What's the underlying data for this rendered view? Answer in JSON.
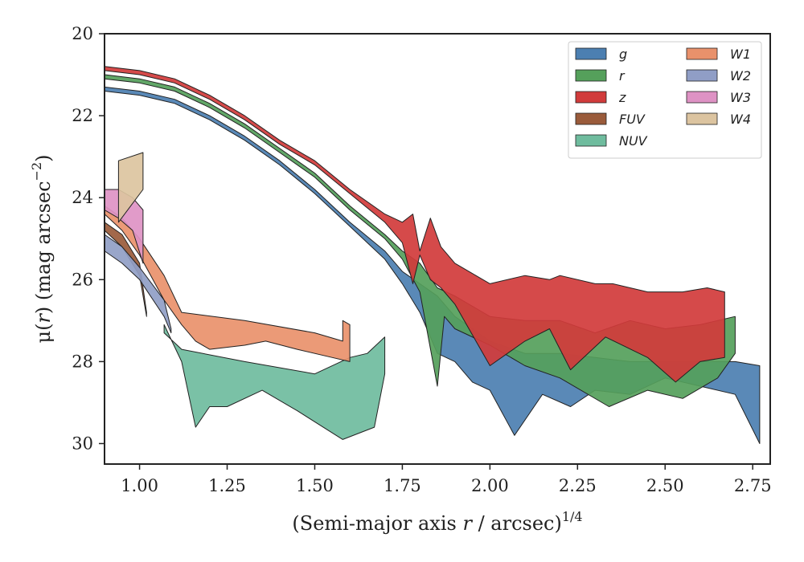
{
  "chart_data": {
    "type": "area",
    "xlabel": "(Semi-major axis r / arcsec)^1/4",
    "xlabel_parts": {
      "pre": "(Semi-major axis ",
      "var": "r",
      "post": " / arcsec)",
      "sup": "1/4"
    },
    "ylabel": "μ(r) (mag arcsec^−2)",
    "ylabel_parts": {
      "pre": "μ(",
      "var": "r",
      "mid": ") (mag arcsec",
      "sup": "−2",
      "post": ")"
    },
    "xlim": [
      0.9,
      2.8
    ],
    "ylim": [
      30.5,
      20
    ],
    "y_inverted": true,
    "grid": false,
    "legend_position": "top-right",
    "legend_columns": 2,
    "xticks": [
      1.0,
      1.25,
      1.5,
      1.75,
      2.0,
      2.25,
      2.5,
      2.75
    ],
    "xtick_labels": [
      "1.00",
      "1.25",
      "1.50",
      "1.75",
      "2.00",
      "2.25",
      "2.50",
      "2.75"
    ],
    "yticks": [
      20,
      22,
      24,
      26,
      28,
      30
    ],
    "ytick_labels": [
      "20",
      "22",
      "24",
      "26",
      "28",
      "30"
    ],
    "series": [
      {
        "name": "g",
        "color": "#4c7fb1",
        "upper": [
          [
            0.9,
            21.3
          ],
          [
            1.0,
            21.4
          ],
          [
            1.1,
            21.6
          ],
          [
            1.2,
            22.0
          ],
          [
            1.3,
            22.5
          ],
          [
            1.4,
            23.1
          ],
          [
            1.5,
            23.8
          ],
          [
            1.6,
            24.6
          ],
          [
            1.7,
            25.3
          ],
          [
            1.75,
            25.8
          ],
          [
            1.8,
            26.1
          ],
          [
            1.85,
            26.4
          ],
          [
            1.9,
            26.9
          ],
          [
            1.95,
            27.2
          ],
          [
            2.0,
            27.5
          ],
          [
            2.1,
            27.8
          ],
          [
            2.2,
            27.8
          ],
          [
            2.3,
            27.9
          ],
          [
            2.4,
            28.0
          ],
          [
            2.5,
            28.0
          ],
          [
            2.6,
            28.0
          ],
          [
            2.7,
            28.0
          ],
          [
            2.77,
            28.1
          ]
        ],
        "lower": [
          [
            0.9,
            21.4
          ],
          [
            1.0,
            21.5
          ],
          [
            1.1,
            21.7
          ],
          [
            1.2,
            22.1
          ],
          [
            1.3,
            22.6
          ],
          [
            1.4,
            23.2
          ],
          [
            1.5,
            23.9
          ],
          [
            1.6,
            24.7
          ],
          [
            1.7,
            25.5
          ],
          [
            1.75,
            26.1
          ],
          [
            1.8,
            26.8
          ],
          [
            1.85,
            27.8
          ],
          [
            1.9,
            28.0
          ],
          [
            1.95,
            28.5
          ],
          [
            2.0,
            28.7
          ],
          [
            2.07,
            29.8
          ],
          [
            2.15,
            28.8
          ],
          [
            2.23,
            29.1
          ],
          [
            2.3,
            28.7
          ],
          [
            2.4,
            28.8
          ],
          [
            2.5,
            28.4
          ],
          [
            2.6,
            28.6
          ],
          [
            2.7,
            28.8
          ],
          [
            2.77,
            30.0
          ]
        ]
      },
      {
        "name": "r",
        "color": "#55a05b",
        "upper": [
          [
            0.9,
            21.0
          ],
          [
            1.0,
            21.1
          ],
          [
            1.1,
            21.3
          ],
          [
            1.2,
            21.7
          ],
          [
            1.3,
            22.2
          ],
          [
            1.4,
            22.8
          ],
          [
            1.5,
            23.4
          ],
          [
            1.6,
            24.2
          ],
          [
            1.7,
            24.9
          ],
          [
            1.75,
            25.3
          ],
          [
            1.8,
            25.6
          ],
          [
            1.85,
            26.2
          ],
          [
            1.9,
            26.4
          ],
          [
            2.0,
            26.9
          ],
          [
            2.1,
            27.0
          ],
          [
            2.2,
            27.0
          ],
          [
            2.3,
            27.3
          ],
          [
            2.4,
            27.0
          ],
          [
            2.5,
            27.2
          ],
          [
            2.6,
            27.1
          ],
          [
            2.7,
            26.9
          ]
        ],
        "lower": [
          [
            0.9,
            21.1
          ],
          [
            1.0,
            21.2
          ],
          [
            1.1,
            21.4
          ],
          [
            1.2,
            21.8
          ],
          [
            1.3,
            22.3
          ],
          [
            1.4,
            22.9
          ],
          [
            1.5,
            23.5
          ],
          [
            1.6,
            24.3
          ],
          [
            1.7,
            25.0
          ],
          [
            1.75,
            25.5
          ],
          [
            1.8,
            26.3
          ],
          [
            1.85,
            28.6
          ],
          [
            1.87,
            26.9
          ],
          [
            1.9,
            27.2
          ],
          [
            2.0,
            27.6
          ],
          [
            2.1,
            28.1
          ],
          [
            2.2,
            28.4
          ],
          [
            2.34,
            29.1
          ],
          [
            2.45,
            28.7
          ],
          [
            2.55,
            28.9
          ],
          [
            2.65,
            28.4
          ],
          [
            2.7,
            27.8
          ]
        ]
      },
      {
        "name": "z",
        "color": "#d13b3b",
        "upper": [
          [
            0.9,
            20.8
          ],
          [
            1.0,
            20.9
          ],
          [
            1.1,
            21.1
          ],
          [
            1.2,
            21.5
          ],
          [
            1.3,
            22.0
          ],
          [
            1.4,
            22.6
          ],
          [
            1.5,
            23.1
          ],
          [
            1.6,
            23.8
          ],
          [
            1.7,
            24.4
          ],
          [
            1.75,
            24.6
          ],
          [
            1.78,
            24.4
          ],
          [
            1.8,
            25.3
          ],
          [
            1.83,
            24.5
          ],
          [
            1.86,
            25.2
          ],
          [
            1.9,
            25.6
          ],
          [
            2.0,
            26.1
          ],
          [
            2.1,
            25.9
          ],
          [
            2.17,
            26.0
          ],
          [
            2.2,
            25.9
          ],
          [
            2.3,
            26.1
          ],
          [
            2.35,
            26.1
          ],
          [
            2.45,
            26.3
          ],
          [
            2.55,
            26.3
          ],
          [
            2.62,
            26.2
          ],
          [
            2.67,
            26.3
          ]
        ],
        "lower": [
          [
            0.9,
            20.9
          ],
          [
            1.0,
            21.0
          ],
          [
            1.1,
            21.2
          ],
          [
            1.2,
            21.6
          ],
          [
            1.3,
            22.1
          ],
          [
            1.4,
            22.7
          ],
          [
            1.5,
            23.2
          ],
          [
            1.6,
            23.9
          ],
          [
            1.7,
            24.6
          ],
          [
            1.75,
            25.1
          ],
          [
            1.78,
            26.1
          ],
          [
            1.8,
            25.4
          ],
          [
            1.83,
            26.0
          ],
          [
            1.86,
            26.2
          ],
          [
            1.9,
            26.6
          ],
          [
            2.0,
            28.1
          ],
          [
            2.1,
            27.5
          ],
          [
            2.17,
            27.2
          ],
          [
            2.23,
            28.2
          ],
          [
            2.33,
            27.4
          ],
          [
            2.45,
            27.9
          ],
          [
            2.53,
            28.5
          ],
          [
            2.6,
            28.0
          ],
          [
            2.67,
            27.9
          ]
        ]
      },
      {
        "name": "FUV",
        "color": "#9a5b3b",
        "upper": [
          [
            0.9,
            24.6
          ],
          [
            0.95,
            24.9
          ],
          [
            1.0,
            25.6
          ],
          [
            1.02,
            26.8
          ]
        ],
        "lower": [
          [
            0.9,
            24.8
          ],
          [
            0.95,
            25.2
          ],
          [
            1.0,
            25.9
          ],
          [
            1.02,
            26.9
          ]
        ]
      },
      {
        "name": "NUV",
        "color": "#6fbc9e",
        "upper": [
          [
            1.07,
            27.3
          ],
          [
            1.12,
            27.7
          ],
          [
            1.3,
            28.0
          ],
          [
            1.5,
            28.3
          ],
          [
            1.6,
            27.9
          ],
          [
            1.65,
            27.8
          ],
          [
            1.7,
            27.4
          ]
        ],
        "lower": [
          [
            1.07,
            27.1
          ],
          [
            1.12,
            28.0
          ],
          [
            1.16,
            29.6
          ],
          [
            1.2,
            29.1
          ],
          [
            1.25,
            29.1
          ],
          [
            1.35,
            28.7
          ],
          [
            1.45,
            29.2
          ],
          [
            1.58,
            29.9
          ],
          [
            1.67,
            29.6
          ],
          [
            1.7,
            28.3
          ]
        ]
      },
      {
        "name": "W1",
        "color": "#e9916b",
        "upper": [
          [
            0.9,
            24.2
          ],
          [
            0.95,
            24.5
          ],
          [
            1.0,
            25.0
          ],
          [
            1.07,
            25.9
          ],
          [
            1.12,
            26.8
          ],
          [
            1.3,
            27.0
          ],
          [
            1.5,
            27.3
          ],
          [
            1.58,
            27.5
          ],
          [
            1.58,
            27.0
          ],
          [
            1.6,
            27.1
          ]
        ],
        "lower": [
          [
            0.9,
            24.4
          ],
          [
            0.95,
            24.8
          ],
          [
            1.0,
            25.4
          ],
          [
            1.07,
            26.5
          ],
          [
            1.12,
            27.1
          ],
          [
            1.16,
            27.5
          ],
          [
            1.2,
            27.7
          ],
          [
            1.3,
            27.6
          ],
          [
            1.36,
            27.5
          ],
          [
            1.45,
            27.7
          ],
          [
            1.55,
            27.9
          ],
          [
            1.6,
            28.0
          ]
        ]
      },
      {
        "name": "W2",
        "color": "#909ec6",
        "upper": [
          [
            0.9,
            24.9
          ],
          [
            0.95,
            25.2
          ],
          [
            1.0,
            25.7
          ],
          [
            1.07,
            26.5
          ],
          [
            1.09,
            27.2
          ]
        ],
        "lower": [
          [
            0.9,
            25.3
          ],
          [
            0.95,
            25.6
          ],
          [
            1.0,
            26.0
          ],
          [
            1.07,
            26.9
          ],
          [
            1.09,
            27.3
          ]
        ]
      },
      {
        "name": "W3",
        "color": "#de92c4",
        "upper": [
          [
            0.9,
            23.8
          ],
          [
            0.94,
            23.8
          ],
          [
            0.98,
            24.0
          ],
          [
            1.01,
            24.3
          ],
          [
            1.01,
            25.6
          ]
        ],
        "lower": [
          [
            0.9,
            24.3
          ],
          [
            0.94,
            24.5
          ],
          [
            0.98,
            24.8
          ],
          [
            1.01,
            25.6
          ]
        ]
      },
      {
        "name": "W4",
        "color": "#dcc4a0",
        "upper": [
          [
            0.94,
            23.1
          ],
          [
            1.01,
            22.9
          ],
          [
            1.01,
            23.8
          ]
        ],
        "lower": [
          [
            0.94,
            24.6
          ],
          [
            1.01,
            23.8
          ]
        ]
      }
    ]
  }
}
